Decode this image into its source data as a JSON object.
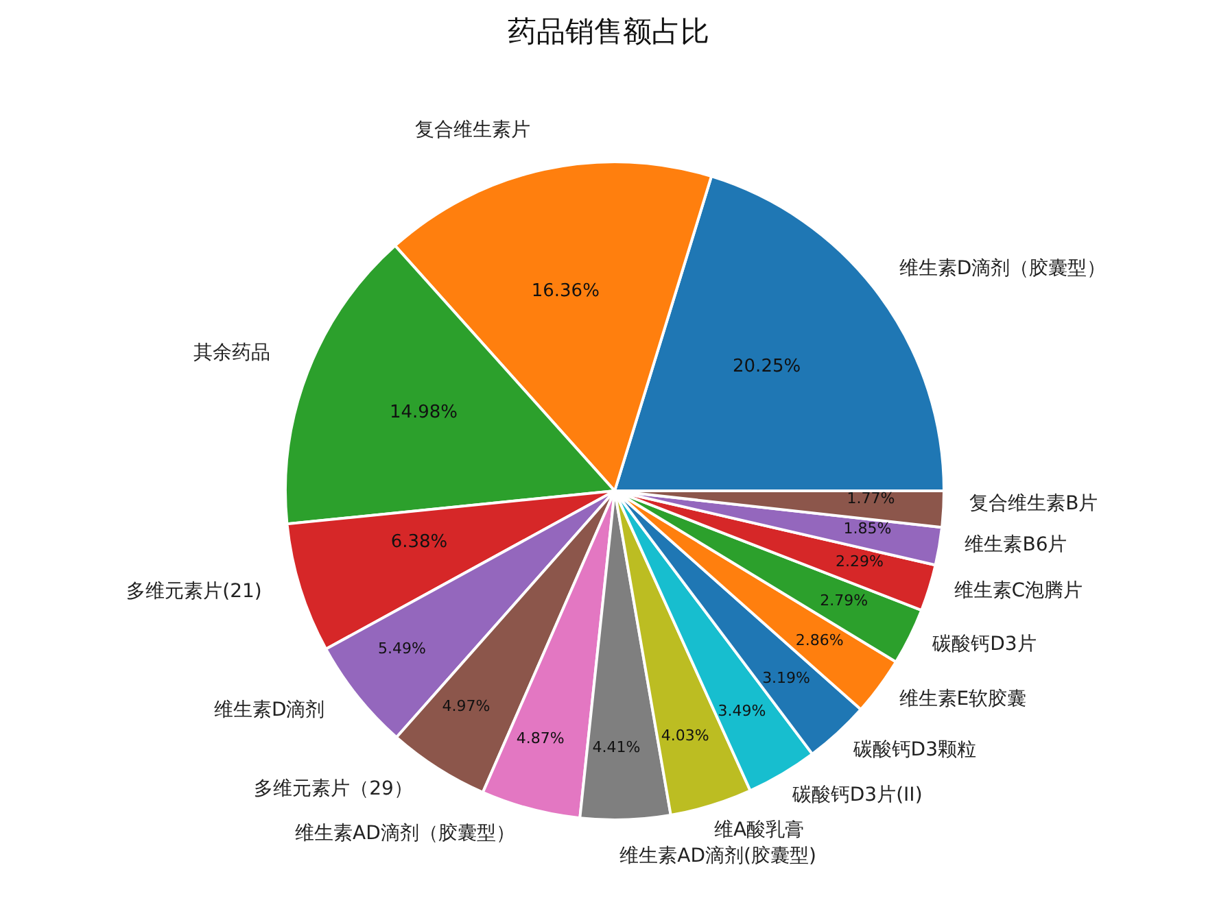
{
  "chart_data": {
    "type": "pie",
    "title": "药品销售额占比",
    "categories": [
      "维生素D滴剂（胶囊型）",
      "复合维生素片",
      "其余药品",
      "多维元素片(21)",
      "维生素D滴剂",
      "多维元素片（29）",
      "维生素AD滴剂（胶囊型）",
      "维生素AD滴剂(胶囊型)",
      "维A酸乳膏",
      "碳酸钙D3片(II)",
      "碳酸钙D3颗粒",
      "维生素E软胶囊",
      "碳酸钙D3片",
      "维生素C泡腾片",
      "维生素B6片",
      "复合维生素B片"
    ],
    "values": [
      20.25,
      16.36,
      14.98,
      6.38,
      5.49,
      4.97,
      4.87,
      4.41,
      4.03,
      3.49,
      3.19,
      2.86,
      2.79,
      2.29,
      1.85,
      1.77
    ],
    "colors": [
      "#1f77b4",
      "#ff7f0e",
      "#2ca02c",
      "#d62728",
      "#9467bd",
      "#8c564b",
      "#e377c2",
      "#7f7f7f",
      "#bcbd22",
      "#17becf",
      "#1f77b4",
      "#ff7f0e",
      "#2ca02c",
      "#d62728",
      "#9467bd",
      "#8c564b"
    ],
    "value_labels": [
      "20.25%",
      "16.36%",
      "14.98%",
      "6.38%",
      "5.49%",
      "4.97%",
      "4.87%",
      "4.41%",
      "4.03%",
      "3.49%",
      "3.19%",
      "2.86%",
      "2.79%",
      "2.29%",
      "1.85%",
      "1.77%"
    ],
    "legend": false
  }
}
